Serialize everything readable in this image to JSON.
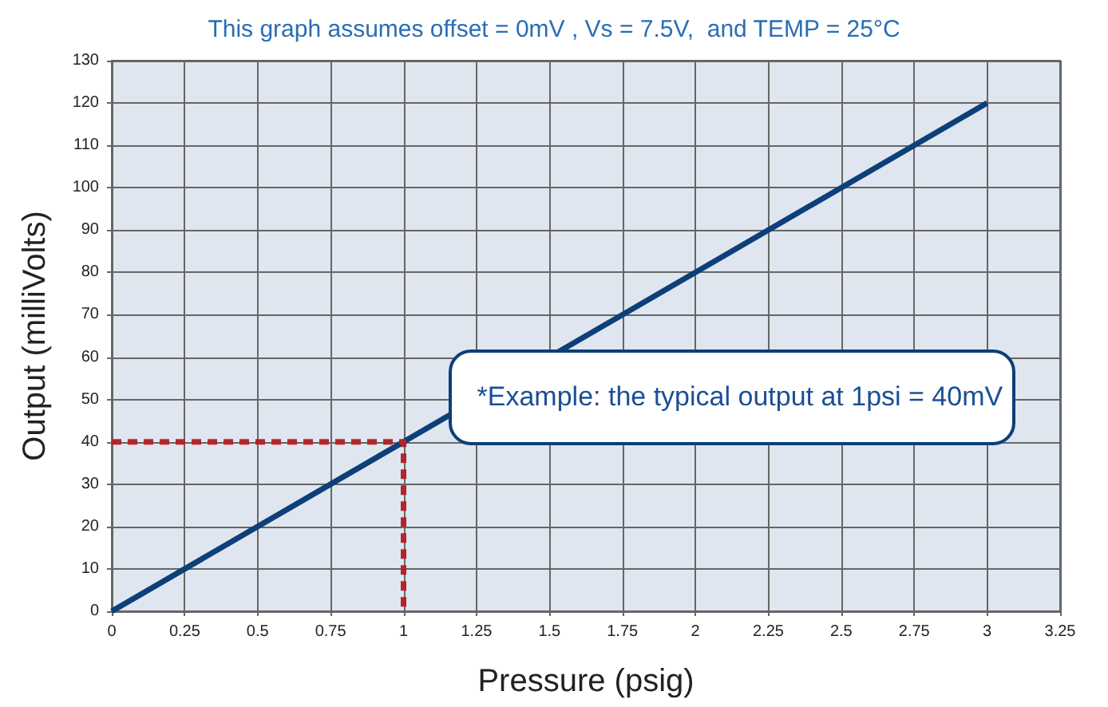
{
  "chart_data": {
    "type": "line",
    "title": "This graph assumes offset = 0mV , Vs = 7.5V,  and TEMP = 25°C",
    "xlabel": "Pressure (psig)",
    "ylabel": "Output (milliVolts)",
    "series": [
      {
        "x": [
          0,
          3
        ],
        "values": [
          0,
          120
        ],
        "color": "#0d3f78",
        "line_style": "solid"
      },
      {
        "x": [
          0,
          1,
          1
        ],
        "values": [
          40,
          40,
          0
        ],
        "color": "#b5242a",
        "line_style": "dashed"
      }
    ],
    "annotations": [
      {
        "text": "*Example:  the typical output at 1psi = 40mV",
        "x": 1,
        "y": 40
      }
    ],
    "xlim": [
      0,
      3.25
    ],
    "xticks": [
      0,
      0.25,
      0.5,
      0.75,
      1,
      1.25,
      1.5,
      1.75,
      2,
      2.25,
      2.5,
      2.75,
      3,
      3.25
    ],
    "ylim": [
      0,
      130
    ],
    "yticks": [
      0,
      10,
      20,
      30,
      40,
      50,
      60,
      70,
      80,
      90,
      100,
      110,
      120,
      130
    ],
    "grid": true,
    "marker": "none"
  }
}
